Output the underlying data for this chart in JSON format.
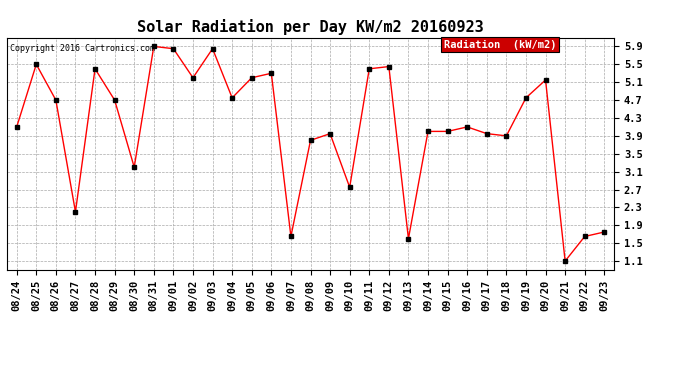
{
  "title": "Solar Radiation per Day KW/m2 20160923",
  "copyright": "Copyright 2016 Cartronics.com",
  "legend_label": "Radiation  (kW/m2)",
  "dates": [
    "08/24",
    "08/25",
    "08/26",
    "08/27",
    "08/28",
    "08/29",
    "08/30",
    "08/31",
    "09/01",
    "09/02",
    "09/03",
    "09/04",
    "09/05",
    "09/06",
    "09/07",
    "09/08",
    "09/09",
    "09/10",
    "09/11",
    "09/12",
    "09/13",
    "09/14",
    "09/15",
    "09/16",
    "09/17",
    "09/18",
    "09/19",
    "09/20",
    "09/21",
    "09/22",
    "09/23"
  ],
  "values": [
    4.1,
    5.5,
    4.7,
    2.2,
    5.4,
    4.7,
    3.2,
    5.9,
    5.85,
    5.2,
    5.85,
    4.75,
    5.2,
    5.3,
    1.65,
    3.8,
    3.95,
    2.75,
    5.4,
    5.45,
    1.6,
    4.0,
    4.0,
    4.1,
    3.95,
    3.9,
    4.75,
    5.15,
    1.1,
    1.65,
    1.75
  ],
  "line_color": "red",
  "marker_color": "black",
  "grid_color": "#aaaaaa",
  "background_color": "white",
  "plot_bg_color": "white",
  "ylim": [
    0.9,
    6.1
  ],
  "yticks": [
    1.1,
    1.5,
    1.9,
    2.3,
    2.7,
    3.1,
    3.5,
    3.9,
    4.3,
    4.7,
    5.1,
    5.5,
    5.9
  ],
  "legend_bg": "#cc0000",
  "legend_text_color": "white",
  "title_fontsize": 11,
  "copyright_fontsize": 6,
  "tick_fontsize": 7.5,
  "legend_fontsize": 7.5
}
